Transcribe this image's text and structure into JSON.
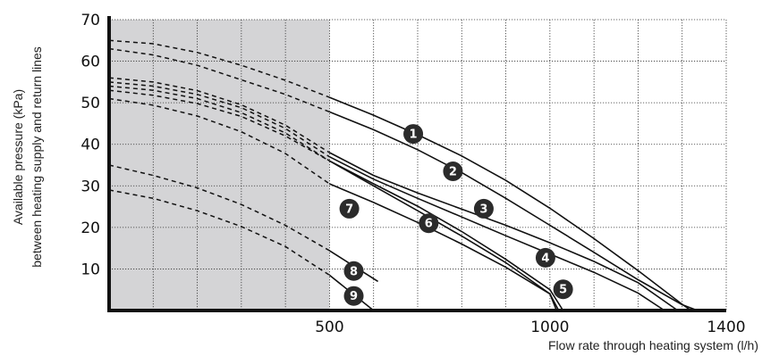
{
  "chart_data": {
    "type": "line",
    "title": "",
    "xlabel": "Flow rate through heating system (l/h)",
    "ylabel_lines": [
      "Available pressure (kPa)",
      "between heating supply and return lines"
    ],
    "xlim": [
      0,
      1400
    ],
    "ylim": [
      0,
      70
    ],
    "x_ticks": [
      500,
      1000,
      1400
    ],
    "y_ticks": [
      10,
      20,
      30,
      40,
      50,
      60,
      70
    ],
    "x_grid_step": 100,
    "y_grid_step": 10,
    "grid": true,
    "shaded_region": {
      "x": [
        0,
        500
      ],
      "color": "#d4d4d6"
    },
    "dashed_below_x": 500,
    "series": [
      {
        "label": "1",
        "x": [
          0,
          100,
          200,
          300,
          400,
          500,
          600,
          700,
          800,
          900,
          1000,
          1100,
          1200,
          1300,
          1320
        ],
        "y": [
          65,
          64.2,
          62.1,
          59,
          55.4,
          51.3,
          47,
          42.3,
          37.2,
          31.3,
          24.6,
          17.3,
          9.6,
          1.5,
          0
        ]
      },
      {
        "label": "2",
        "x": [
          0,
          100,
          200,
          300,
          400,
          500,
          600,
          700,
          800,
          900,
          1000,
          1100,
          1200,
          1300,
          1335
        ],
        "y": [
          63,
          61.5,
          59,
          55.5,
          52,
          47.8,
          43.5,
          38.7,
          33.2,
          27,
          20.5,
          14,
          7.4,
          1.4,
          0
        ]
      },
      {
        "label": "3",
        "x": [
          0,
          100,
          200,
          300,
          400,
          500,
          600,
          700,
          800,
          900,
          1000,
          1100,
          1200,
          1290
        ],
        "y": [
          56,
          55,
          52.9,
          49.5,
          44.6,
          38,
          32.5,
          28.3,
          24.4,
          20.5,
          16.3,
          11.8,
          6.7,
          0
        ]
      },
      {
        "label": "4",
        "x": [
          0,
          100,
          200,
          300,
          400,
          500,
          600,
          700,
          800,
          900,
          1000,
          1100,
          1200,
          1260
        ],
        "y": [
          55,
          54,
          52,
          48.8,
          43.8,
          37,
          31.6,
          27,
          22.5,
          18,
          13.6,
          9.2,
          4.2,
          0
        ]
      },
      {
        "label": "5",
        "x": [
          0,
          100,
          200,
          300,
          400,
          500,
          600,
          700,
          800,
          900,
          1000,
          1030
        ],
        "y": [
          54,
          53,
          51,
          47.6,
          42.7,
          36,
          30.5,
          25.1,
          19,
          12.3,
          5,
          0
        ]
      },
      {
        "label": "6",
        "x": [
          0,
          100,
          200,
          300,
          400,
          500,
          600,
          700,
          800,
          900,
          1000,
          1015
        ],
        "y": [
          53,
          51.8,
          49.8,
          46.7,
          42,
          36,
          30,
          24,
          17.9,
          11.5,
          4,
          0
        ]
      },
      {
        "label": "7",
        "x": [
          0,
          100,
          200,
          300,
          400,
          500,
          600,
          700,
          800,
          900,
          1000,
          1020
        ],
        "y": [
          51,
          49.4,
          46.8,
          43,
          37.8,
          30.5,
          26,
          21.2,
          16,
          10.4,
          4,
          0
        ]
      },
      {
        "label": "8",
        "x": [
          0,
          100,
          200,
          300,
          400,
          500,
          610
        ],
        "y": [
          35,
          32.5,
          29.5,
          25.5,
          20.5,
          14.4,
          7
        ]
      },
      {
        "label": "9",
        "x": [
          0,
          100,
          200,
          300,
          400,
          500,
          600
        ],
        "y": [
          29,
          27,
          24,
          20.2,
          15.4,
          8.5,
          0
        ]
      }
    ],
    "markers": [
      {
        "label": "1",
        "x": 690,
        "y": 42.5
      },
      {
        "label": "2",
        "x": 780,
        "y": 33.5
      },
      {
        "label": "3",
        "x": 850,
        "y": 24.5
      },
      {
        "label": "4",
        "x": 990,
        "y": 12.7
      },
      {
        "label": "5",
        "x": 1030,
        "y": 5.1
      },
      {
        "label": "6",
        "x": 725,
        "y": 21
      },
      {
        "label": "7",
        "x": 545,
        "y": 24.5
      },
      {
        "label": "8",
        "x": 555,
        "y": 9.5
      },
      {
        "label": "9",
        "x": 555,
        "y": 3.5
      }
    ],
    "colors": {
      "line": "#111111",
      "grid": "#333333",
      "marker_fill": "#2b2b2b",
      "marker_text": "#ffffff"
    }
  }
}
